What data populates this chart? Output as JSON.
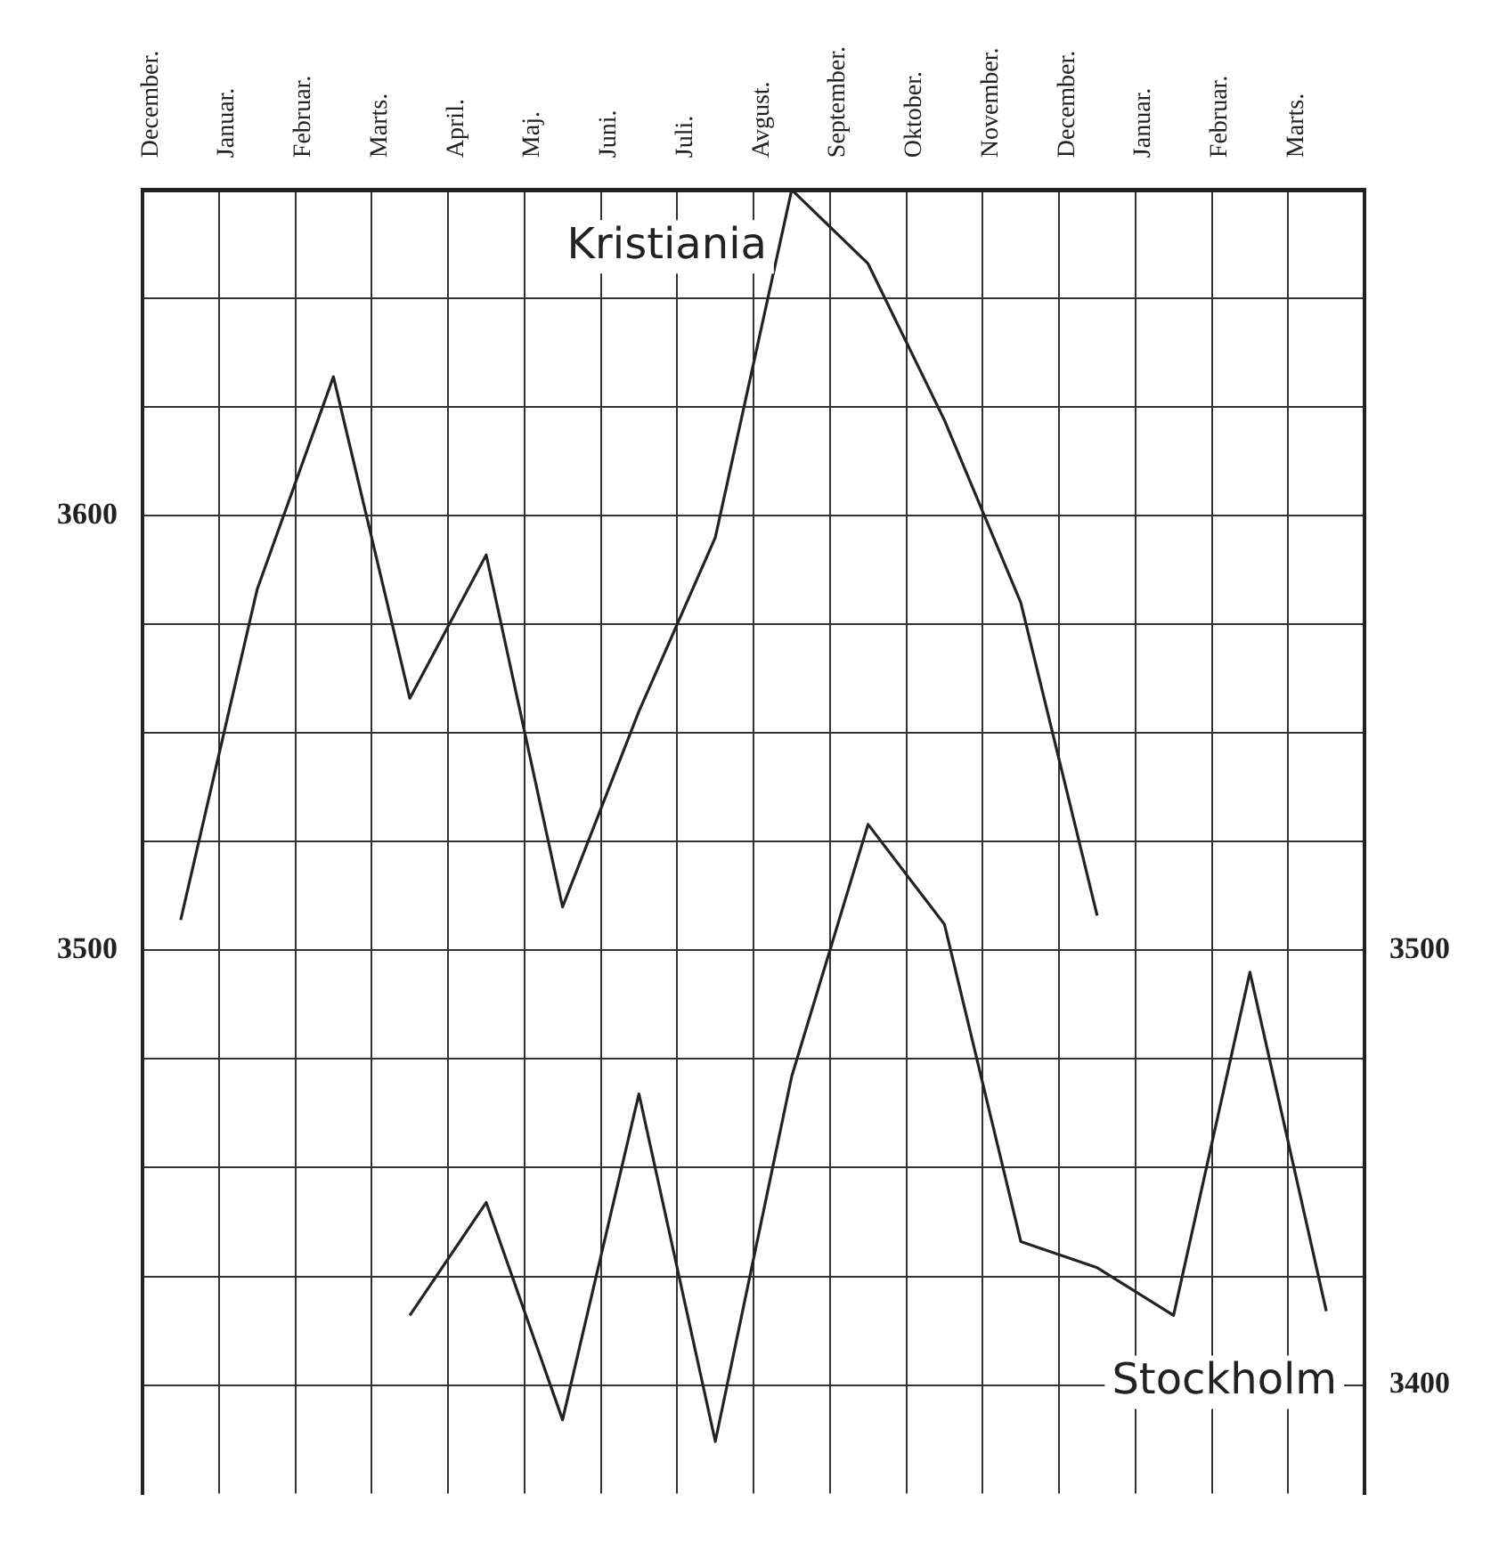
{
  "chart_data": {
    "type": "line",
    "categories": [
      "December.",
      "Januar.",
      "Februar.",
      "Marts.",
      "April.",
      "Maj.",
      "Juni.",
      "Juli.",
      "Avgust.",
      "September.",
      "Oktober.",
      "November.",
      "December.",
      "Januar.",
      "Februar.",
      "Marts."
    ],
    "series": [
      {
        "name": "Kristiania",
        "color": "#222222",
        "values": [
          3507,
          3583,
          3632,
          3558,
          3591,
          3510,
          3555,
          3595,
          3675,
          3658,
          3622,
          3580,
          3508,
          null,
          null,
          null
        ]
      },
      {
        "name": "Stockholm",
        "color": "#222222",
        "values": [
          null,
          null,
          null,
          3416,
          3442,
          3392,
          3467,
          3387,
          3471,
          3529,
          3506,
          3433,
          3427,
          3416,
          3495,
          3417
        ]
      }
    ],
    "ylim": [
      3375,
      3675
    ],
    "yticks": [
      {
        "value": 3400,
        "label": null
      },
      {
        "value": 3425,
        "label": null
      },
      {
        "value": 3450,
        "label": null
      },
      {
        "value": 3475,
        "label": null
      },
      3500,
      {
        "value": 3525,
        "label": null
      },
      {
        "value": 3550,
        "label": null
      },
      {
        "value": 3575,
        "label": null
      },
      3600,
      {
        "value": 3625,
        "label": null
      },
      {
        "value": 3650,
        "label": null
      },
      {
        "value": 3675,
        "label": null
      }
    ],
    "y2lim": [
      3375,
      3675
    ],
    "y2ticks": [
      3400,
      3500
    ],
    "grid": true,
    "legend": false,
    "marker": "none",
    "line_style": "solid"
  }
}
